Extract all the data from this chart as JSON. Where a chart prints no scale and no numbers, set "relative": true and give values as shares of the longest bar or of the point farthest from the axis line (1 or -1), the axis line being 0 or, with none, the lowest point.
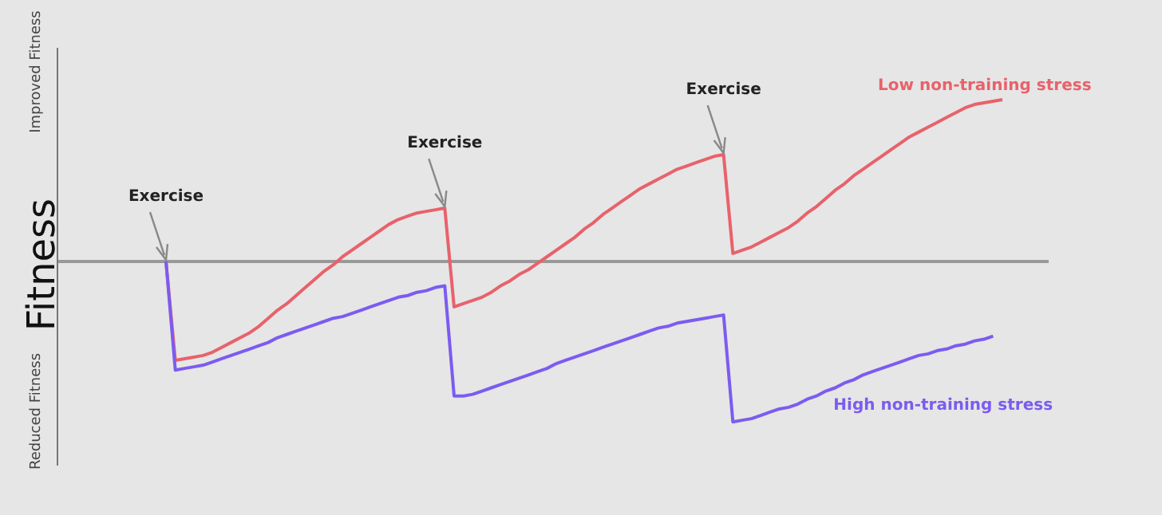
{
  "chart_data": {
    "type": "line",
    "relative": true,
    "ylabel": "Fitness",
    "marker": "none",
    "line_style": "solid",
    "annotations": [
      "Improved Fitness",
      "Reduced Fitness",
      "Exercise",
      "Exercise",
      "Exercise"
    ],
    "categories": [
      null,
      null,
      null,
      null,
      null,
      null,
      null,
      null,
      null,
      null,
      null,
      null,
      null,
      null,
      null,
      null,
      null,
      null,
      null,
      null,
      null,
      null,
      null,
      null,
      null,
      null,
      null,
      null,
      null,
      null,
      null,
      null,
      null,
      null,
      null,
      null,
      null,
      null,
      null,
      null,
      null,
      null,
      null,
      null,
      null,
      null,
      null,
      null,
      null,
      null,
      null,
      null,
      null,
      null,
      null,
      null,
      null,
      null,
      null,
      null,
      null,
      null,
      null,
      null,
      null,
      null,
      null,
      null,
      null,
      null,
      null,
      null,
      null,
      null,
      null,
      null,
      null,
      null,
      null,
      null,
      null,
      null,
      null,
      null,
      null,
      null,
      null,
      null,
      null,
      null,
      null
    ],
    "series": [
      {
        "name": "Low non-training stress",
        "color": "#e8626b",
        "values": [
          0,
          -0.61,
          -0.6,
          -0.59,
          -0.58,
          -0.56,
          -0.53,
          -0.5,
          -0.47,
          -0.44,
          -0.4,
          -0.35,
          -0.3,
          -0.26,
          -0.21,
          -0.16,
          -0.11,
          -0.06,
          -0.02,
          0.03,
          0.07,
          0.11,
          0.15,
          0.19,
          0.23,
          0.26,
          0.28,
          0.3,
          0.31,
          0.32,
          0.33,
          -0.28,
          -0.26,
          -0.24,
          -0.22,
          -0.19,
          -0.15,
          -0.12,
          -0.08,
          -0.05,
          -0.01,
          0.03,
          0.07,
          0.11,
          0.15,
          0.2,
          0.24,
          0.29,
          0.33,
          0.37,
          0.41,
          0.45,
          0.48,
          0.51,
          0.54,
          0.57,
          0.59,
          0.61,
          0.63,
          0.65,
          0.66,
          0.05,
          0.07,
          0.09,
          0.12,
          0.15,
          0.18,
          0.21,
          0.25,
          0.3,
          0.34,
          0.39,
          0.44,
          0.48,
          0.53,
          0.57,
          0.61,
          0.65,
          0.69,
          0.73,
          0.77,
          0.8,
          0.83,
          0.86,
          0.89,
          0.92,
          0.95,
          0.97,
          0.98,
          0.99,
          1
        ]
      },
      {
        "name": "High non-training stress",
        "color": "#7b5cf0",
        "values": [
          0,
          -0.67,
          -0.66,
          -0.65,
          -0.64,
          -0.62,
          -0.6,
          -0.58,
          -0.56,
          -0.54,
          -0.52,
          -0.5,
          -0.47,
          -0.45,
          -0.43,
          -0.41,
          -0.39,
          -0.37,
          -0.35,
          -0.34,
          -0.32,
          -0.3,
          -0.28,
          -0.26,
          -0.24,
          -0.22,
          -0.21,
          -0.19,
          -0.18,
          -0.16,
          -0.15,
          -0.83,
          -0.83,
          -0.82,
          -0.8,
          -0.78,
          -0.76,
          -0.74,
          -0.72,
          -0.7,
          -0.68,
          -0.66,
          -0.63,
          -0.61,
          -0.59,
          -0.57,
          -0.55,
          -0.53,
          -0.51,
          -0.49,
          -0.47,
          -0.45,
          -0.43,
          -0.41,
          -0.4,
          -0.38,
          -0.37,
          -0.36,
          -0.35,
          -0.34,
          -0.33,
          -0.99,
          -0.98,
          -0.97,
          -0.95,
          -0.93,
          -0.91,
          -0.9,
          -0.88,
          -0.85,
          -0.83,
          -0.8,
          -0.78,
          -0.75,
          -0.73,
          -0.7,
          -0.68,
          -0.66,
          -0.64,
          -0.62,
          -0.6,
          -0.58,
          -0.57,
          -0.55,
          -0.54,
          -0.52,
          -0.51,
          -0.49,
          -0.48,
          -0.46,
          null
        ]
      }
    ]
  }
}
